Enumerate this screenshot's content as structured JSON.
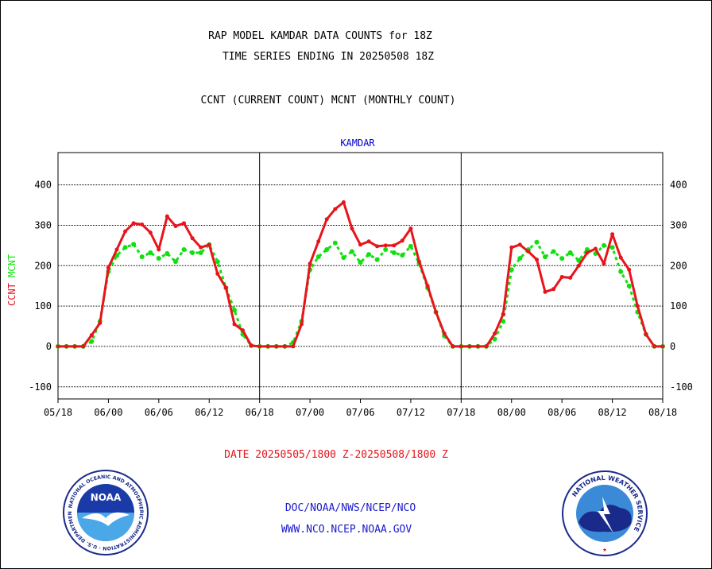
{
  "header": {
    "line1": "RAP MODEL KAMDAR DATA COUNTS for 18Z",
    "line2": "TIME SERIES ENDING IN 20250508 18Z",
    "line3": "CCNT (CURRENT COUNT) MCNT (MONTHLY COUNT)"
  },
  "footer": {
    "date_range": "DATE 20250505/1800 Z-20250508/1800 Z",
    "org": "DOC/NOAA/NWS/NCEP/NCO",
    "url": "WWW.NCO.NCEP.NOAA.GOV"
  },
  "logos": {
    "noaa": {
      "name": "NOAA",
      "ring_text": "NATIONAL OCEANIC AND ATMOSPHERIC ADMINISTRATION · U.S. DEPARTMENT OF COMMERCE"
    },
    "nws": {
      "ring_text": "NATIONAL WEATHER SERVICE"
    }
  },
  "colors": {
    "ccnt": "#e8141c",
    "mcnt": "#10e010",
    "title": "#0000cc",
    "footer_date": "#e8141c",
    "footer_links": "#1a1acc"
  },
  "chart_data": {
    "type": "line",
    "title": "KAMDAR",
    "ylabel_left": [
      "CCNT",
      "MCNT"
    ],
    "ylim": [
      -130,
      480
    ],
    "yticks": [
      -100,
      0,
      100,
      200,
      300,
      400
    ],
    "grid": true,
    "x_ticks": [
      "05/18",
      "06/00",
      "06/06",
      "06/12",
      "06/18",
      "07/00",
      "07/06",
      "07/12",
      "07/18",
      "08/00",
      "08/06",
      "08/12",
      "08/18"
    ],
    "x": [
      -6,
      -5,
      -4,
      -3,
      -2,
      -1,
      0,
      1,
      2,
      3,
      4,
      5,
      6,
      7,
      8,
      9,
      10,
      11,
      12,
      13,
      14,
      15,
      16,
      17,
      18,
      19,
      20,
      21,
      22,
      23,
      24,
      25,
      26,
      27,
      28,
      29,
      30,
      31,
      32,
      33,
      34,
      35,
      36,
      37,
      38,
      39,
      40,
      41,
      42,
      43,
      44,
      45,
      46,
      47,
      48,
      49,
      50,
      51,
      52,
      53,
      54,
      55,
      56,
      57,
      58,
      59,
      60,
      61,
      62,
      63,
      64,
      65,
      66
    ],
    "series": [
      {
        "name": "CCNT",
        "values": [
          0,
          0,
          0,
          0,
          28,
          58,
          195,
          240,
          285,
          305,
          302,
          282,
          240,
          322,
          298,
          305,
          268,
          245,
          252,
          180,
          145,
          55,
          40,
          2,
          0,
          0,
          0,
          0,
          0,
          55,
          205,
          260,
          315,
          340,
          357,
          292,
          252,
          260,
          248,
          250,
          250,
          262,
          292,
          210,
          150,
          85,
          32,
          0,
          0,
          0,
          0,
          0,
          32,
          80,
          245,
          252,
          235,
          215,
          135,
          142,
          172,
          170,
          200,
          232,
          242,
          205,
          278,
          220,
          190,
          100,
          30,
          0,
          0
        ]
      },
      {
        "name": "MCNT",
        "values": [
          0,
          0,
          0,
          0,
          12,
          62,
          185,
          225,
          245,
          253,
          222,
          232,
          218,
          230,
          210,
          240,
          232,
          232,
          252,
          210,
          145,
          90,
          30,
          2,
          0,
          0,
          0,
          0,
          10,
          62,
          190,
          222,
          240,
          256,
          220,
          235,
          208,
          228,
          215,
          240,
          232,
          226,
          248,
          205,
          145,
          85,
          26,
          0,
          0,
          0,
          0,
          0,
          18,
          62,
          190,
          218,
          240,
          258,
          222,
          235,
          218,
          232,
          213,
          240,
          230,
          250,
          245,
          185,
          150,
          85,
          30,
          0,
          0
        ]
      }
    ]
  }
}
